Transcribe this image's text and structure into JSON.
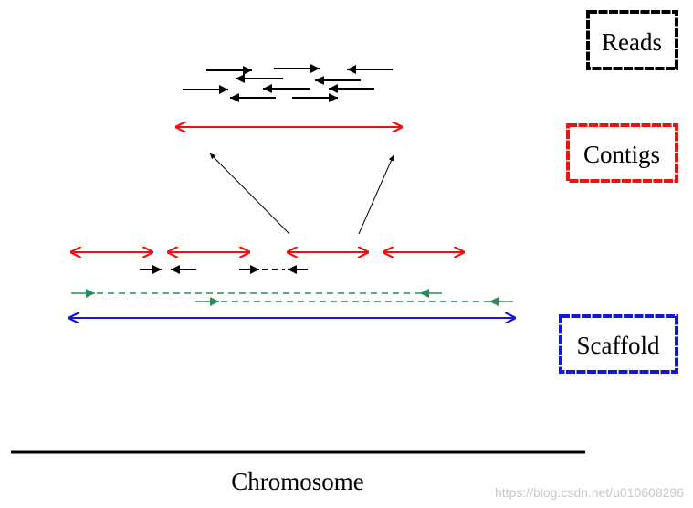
{
  "legend": {
    "reads": "Reads",
    "contigs": "Contigs",
    "scaffold": "Scaffold"
  },
  "chromosome_label": "Chromosome",
  "watermark": "https://blog.csdn.net/u010608296",
  "colors": {
    "reads": "#000000",
    "contigs": "#ee1111",
    "scaffold": "#1515dd",
    "mate_pairs": "#2e8b57",
    "background": "#ffffff"
  },
  "icons": {
    "single_arrow": "arrow-right-icon",
    "double_arrow": "double-arrow-icon"
  }
}
